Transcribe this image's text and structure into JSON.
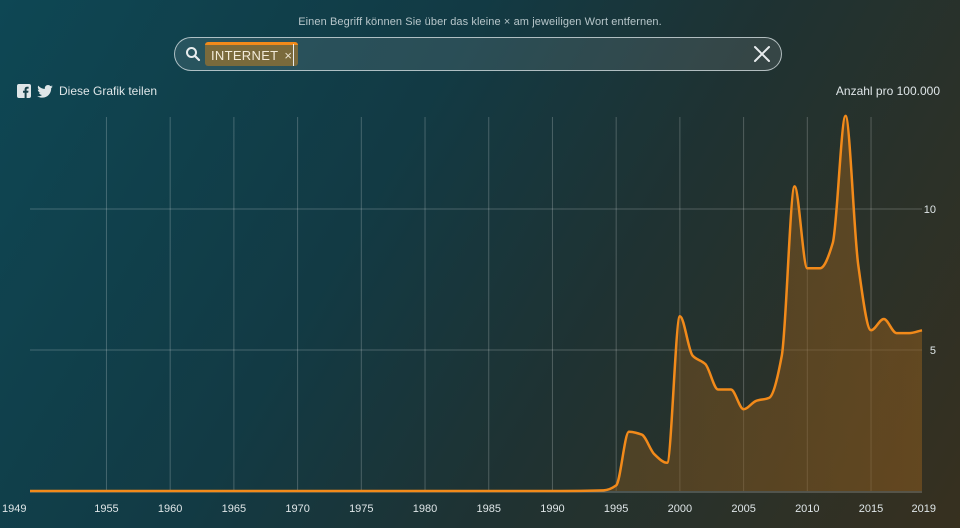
{
  "hint": "Einen Begriff können Sie über das kleine × am jeweiligen Wort entfernen.",
  "search": {
    "chip_label": "INTERNET",
    "chip_close": "×",
    "input_value": "",
    "icons": {
      "search": "search-icon",
      "clear": "close-icon"
    }
  },
  "share": {
    "label": "Diese Grafik teilen",
    "icons": [
      "facebook-icon",
      "twitter-icon"
    ]
  },
  "colors": {
    "line": "#f28a1a",
    "chip": "#7a6a3c",
    "grid": "#ffffff"
  },
  "chart_data": {
    "type": "area",
    "title": "",
    "xlabel": "",
    "ylabel": "Anzahl pro 100.000",
    "xlim": [
      1949,
      2019
    ],
    "ylim": [
      0,
      13.3
    ],
    "x_ticks": [
      1949,
      1955,
      1960,
      1965,
      1970,
      1975,
      1980,
      1985,
      1990,
      1995,
      2000,
      2005,
      2010,
      2015,
      2019
    ],
    "x_gridlines": [
      1955,
      1960,
      1965,
      1970,
      1975,
      1980,
      1985,
      1990,
      1995,
      2000,
      2005,
      2010,
      2015
    ],
    "y_ticks": [
      5,
      10
    ],
    "grid": true,
    "series": [
      {
        "name": "INTERNET",
        "x": [
          1949,
          1955,
          1960,
          1965,
          1970,
          1975,
          1980,
          1985,
          1990,
          1994,
          1995,
          1996,
          1997,
          1998,
          1999,
          2000,
          2001,
          2002,
          2003,
          2004,
          2005,
          2006,
          2007,
          2008,
          2009,
          2010,
          2011,
          2012,
          2013,
          2014,
          2015,
          2016,
          2017,
          2018,
          2019
        ],
        "values": [
          0,
          0,
          0,
          0,
          0,
          0,
          0,
          0,
          0,
          0.02,
          0.2,
          2.1,
          2.0,
          1.3,
          1.0,
          6.2,
          4.8,
          4.5,
          3.6,
          3.6,
          2.9,
          3.2,
          3.3,
          4.8,
          10.8,
          7.9,
          7.9,
          8.8,
          13.3,
          8.0,
          5.7,
          6.1,
          5.6,
          5.6,
          5.7
        ]
      }
    ]
  }
}
